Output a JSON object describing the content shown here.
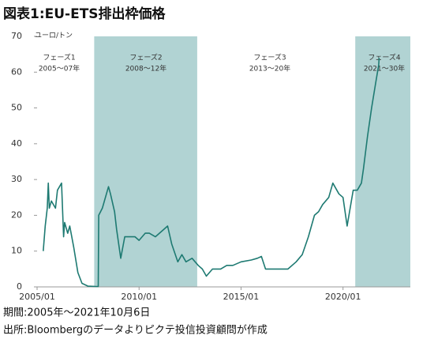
{
  "chart_data": {
    "type": "line",
    "title": "図表1:EU-ETS排出枠価格",
    "y_label": "ユーロ/トン",
    "footnotes": [
      "期間:2005年〜2021年10月6日",
      "出所:Bloombergのデータよりピクテ投信投資顧問が作成"
    ],
    "phases": [
      {
        "name": "フェーズ1",
        "period": "2005〜07年"
      },
      {
        "name": "フェーズ2",
        "period": "2008〜12年"
      },
      {
        "name": "フェーズ3",
        "period": "2013〜20年"
      },
      {
        "name": "フェーズ4",
        "period": "2021〜30年"
      }
    ],
    "shaded_regions": [
      {
        "start": 2007.8,
        "end": 2012.85
      },
      {
        "start": 2020.6,
        "end": 2023.3
      }
    ],
    "shade_color": "#b1d3d3",
    "xlim": [
      2005,
      2023.3
    ],
    "xticks": [
      {
        "value": 2005,
        "label": "2005/01"
      },
      {
        "value": 2010,
        "label": "2010/01"
      },
      {
        "value": 2015,
        "label": "2015/01"
      },
      {
        "value": 2020,
        "label": "2020/01"
      }
    ],
    "ylim": [
      0,
      70
    ],
    "yticks": [
      0,
      10,
      20,
      30,
      40,
      50,
      60,
      70
    ],
    "series": [
      {
        "color": "#1e7a72",
        "x": [
          2005.3,
          2005.4,
          2005.5,
          2005.55,
          2005.6,
          2005.7,
          2005.9,
          2006.0,
          2006.2,
          2006.3,
          2006.35,
          2006.5,
          2006.6,
          2006.8,
          2007.0,
          2007.2,
          2007.5,
          2007.9,
          2008.0,
          2008.02,
          2008.2,
          2008.5,
          2008.6,
          2008.8,
          2008.9,
          2009.1,
          2009.3,
          2009.5,
          2009.8,
          2010.0,
          2010.3,
          2010.5,
          2010.8,
          2011.2,
          2011.4,
          2011.6,
          2011.9,
          2012.1,
          2012.3,
          2012.6,
          2012.9,
          2013.1,
          2013.3,
          2013.6,
          2014.0,
          2014.3,
          2014.6,
          2015.0,
          2015.5,
          2015.8,
          2016.0,
          2016.2,
          2016.6,
          2017.0,
          2017.3,
          2017.7,
          2018.0,
          2018.3,
          2018.6,
          2018.8,
          2019.0,
          2019.3,
          2019.5,
          2019.8,
          2020.0,
          2020.2,
          2020.5,
          2020.7,
          2020.9,
          2021.0,
          2021.2,
          2021.4,
          2021.6,
          2021.75,
          2021.77
        ],
        "values": [
          10,
          17,
          22,
          29,
          22,
          24,
          22,
          27,
          29,
          14,
          18,
          15,
          17,
          11,
          4,
          1,
          0.2,
          0.1,
          0.1,
          20,
          22,
          28,
          26,
          21,
          16,
          8,
          14,
          14,
          14,
          13,
          15,
          15,
          14,
          16,
          17,
          12,
          7,
          9,
          7,
          8,
          6,
          5,
          3,
          5,
          5,
          6,
          6,
          7,
          7.5,
          8,
          8.5,
          5,
          5,
          5,
          5,
          7,
          9,
          14,
          20,
          21,
          23,
          25,
          29,
          26,
          25,
          17,
          27,
          27,
          29,
          33,
          42,
          50,
          57,
          62,
          64
        ]
      }
    ]
  }
}
